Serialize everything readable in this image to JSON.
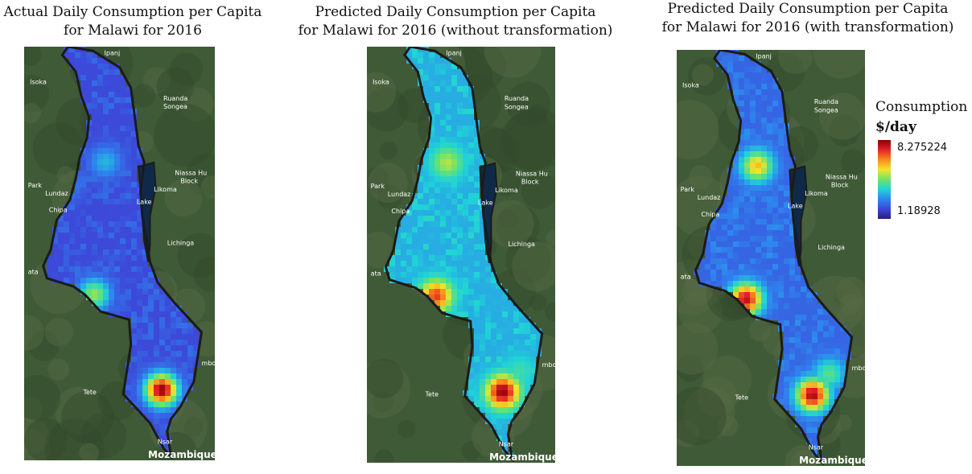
{
  "maps": [
    {
      "id": "actual",
      "title": "Actual Daily Consumption per Capita\nfor Malawi for 2016",
      "hotspots": [
        {
          "lon": 35.0,
          "lat": -15.8,
          "value": 8.2
        },
        {
          "lon": 33.8,
          "lat": -13.98,
          "value": 5.0
        },
        {
          "lon": 34.0,
          "lat": -11.45,
          "value": 3.5
        },
        {
          "lon": 33.3,
          "lat": -11.9,
          "value": 3.0
        }
      ],
      "base_value": 2.1
    },
    {
      "id": "predicted-without",
      "title": "Predicted Daily Consumption per Capita\nfor Malawi for 2016 (without transformation)",
      "hotspots": [
        {
          "lon": 35.0,
          "lat": -15.8,
          "value": 8.2
        },
        {
          "lon": 33.8,
          "lat": -13.98,
          "value": 7.2
        },
        {
          "lon": 34.0,
          "lat": -11.45,
          "value": 5.2
        },
        {
          "lon": 35.3,
          "lat": -15.4,
          "value": 4.2
        }
      ],
      "base_value": 3.4
    },
    {
      "id": "predicted-with",
      "title": "Predicted Daily Consumption per Capita\nfor Malawi for 2016 (with transformation)",
      "hotspots": [
        {
          "lon": 35.0,
          "lat": -15.8,
          "value": 8.0
        },
        {
          "lon": 33.8,
          "lat": -13.98,
          "value": 7.8
        },
        {
          "lon": 34.0,
          "lat": -11.45,
          "value": 6.0
        },
        {
          "lon": 35.3,
          "lat": -15.4,
          "value": 4.5
        }
      ],
      "base_value": 2.5
    }
  ],
  "basemap_labels": [
    "Ipanj",
    "Isoka",
    "Ruanda",
    "Songea",
    "Niassa Hu",
    "Block",
    "Lake",
    "Likoma",
    "Lichinga",
    "Lundaz",
    "Chipa",
    "Tete",
    "Nsar",
    "mbo",
    "Park",
    "ata",
    "Mozambique"
  ],
  "legend": {
    "title": "Consumption",
    "unit": "$/day",
    "max": "8.275224",
    "min": "1.18928",
    "max_value": 8.275224,
    "min_value": 1.18928,
    "colors": [
      "#8b0000",
      "#e4222a",
      "#f88c1b",
      "#f4e42c",
      "#6ee36a",
      "#1fd4d6",
      "#2e86ee",
      "#3d47d8",
      "#2a1c7a"
    ]
  }
}
